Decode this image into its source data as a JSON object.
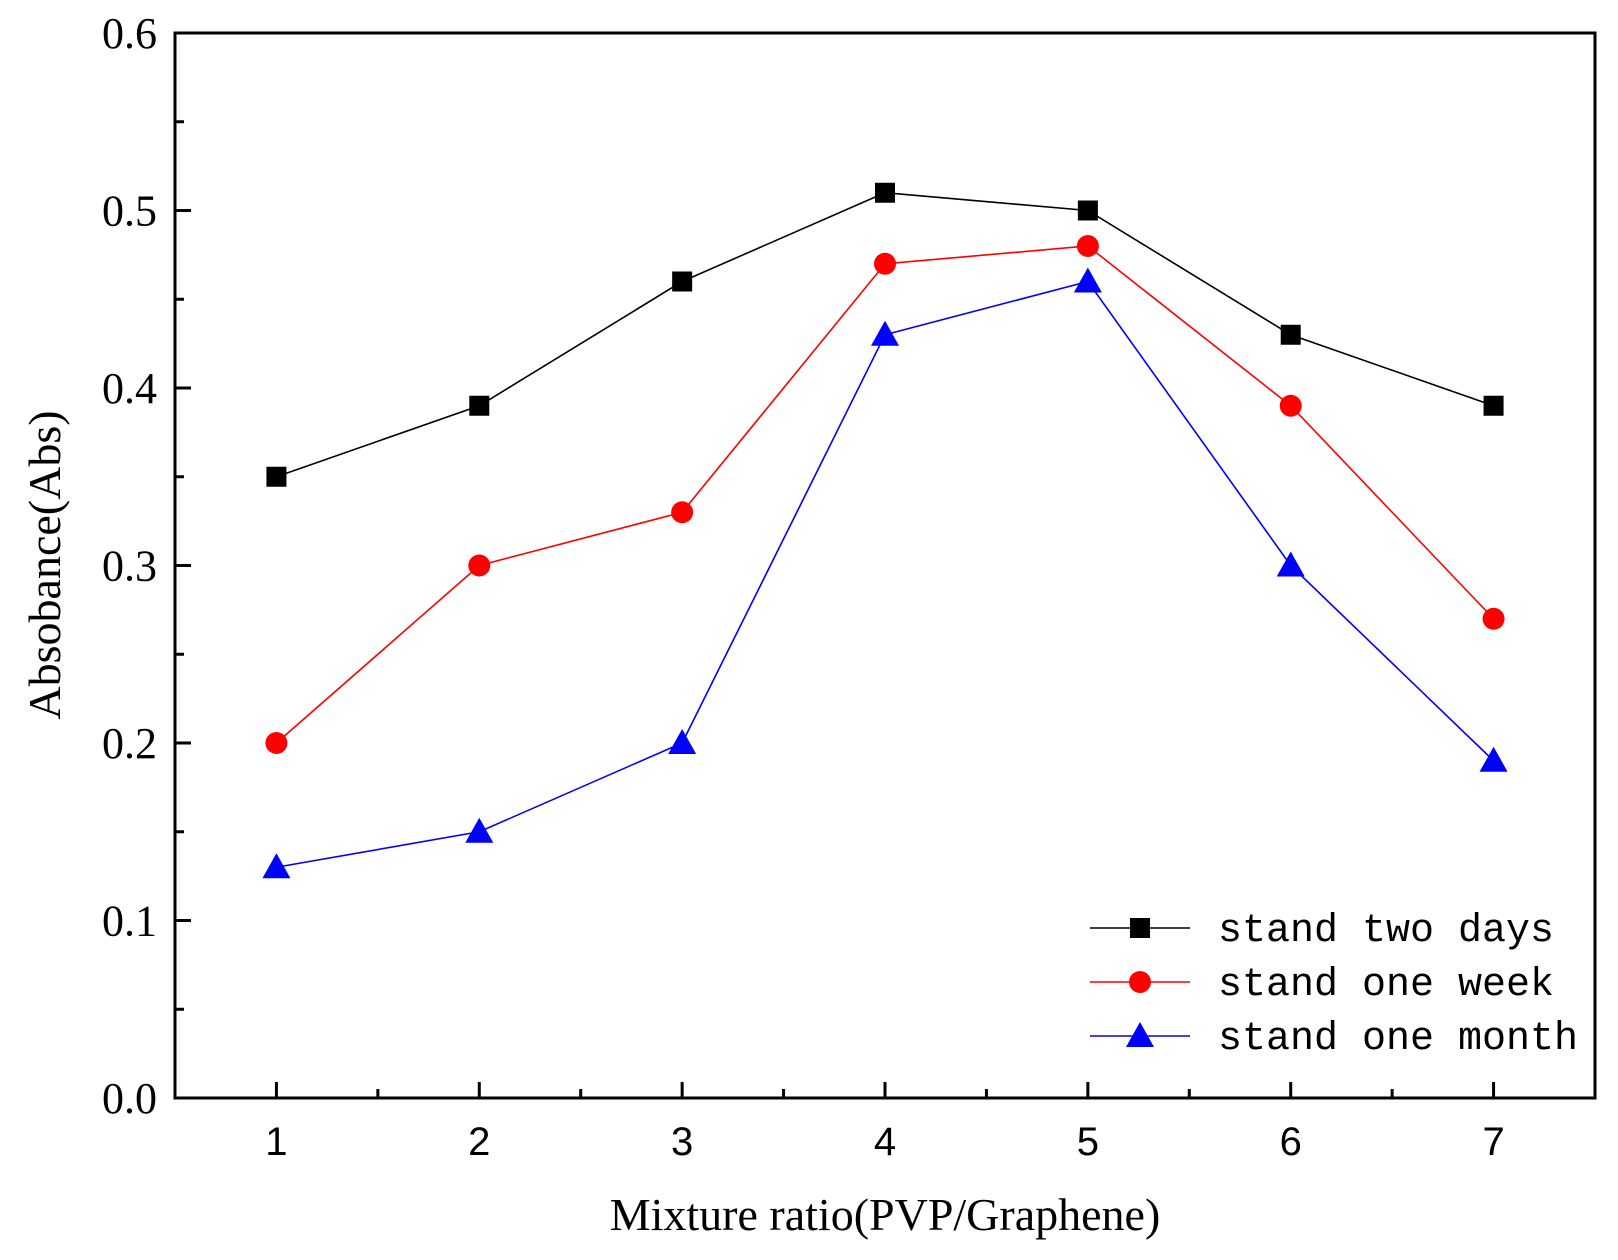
{
  "chart_data": {
    "type": "line",
    "title": "",
    "xlabel": "Mixture ratio(PVP/Graphene)",
    "ylabel": "Absobance(Abs)",
    "x": [
      1,
      2,
      3,
      4,
      5,
      6,
      7
    ],
    "x_tick_labels": [
      "1",
      "2",
      "3",
      "4",
      "5",
      "6",
      "7"
    ],
    "xlim": [
      0.5,
      7.5
    ],
    "ylim": [
      0.0,
      0.6
    ],
    "y_tick_labels": [
      "0.0",
      "0.1",
      "0.2",
      "0.3",
      "0.4",
      "0.5",
      "0.6"
    ],
    "y_ticks": [
      0.0,
      0.1,
      0.2,
      0.3,
      0.4,
      0.5,
      0.6
    ],
    "grid": false,
    "legend_position": "bottom-right",
    "series": [
      {
        "name": "stand two days",
        "color": "#000000",
        "marker": "square",
        "values": [
          0.35,
          0.39,
          0.46,
          0.51,
          0.5,
          0.43,
          0.39
        ]
      },
      {
        "name": "stand one week",
        "color": "#ff0000",
        "marker": "circle",
        "values": [
          0.2,
          0.3,
          0.33,
          0.47,
          0.48,
          0.39,
          0.27
        ]
      },
      {
        "name": "stand one month",
        "color": "#0000ff",
        "marker": "triangle",
        "values": [
          0.13,
          0.15,
          0.2,
          0.43,
          0.46,
          0.3,
          0.19
        ]
      }
    ]
  }
}
